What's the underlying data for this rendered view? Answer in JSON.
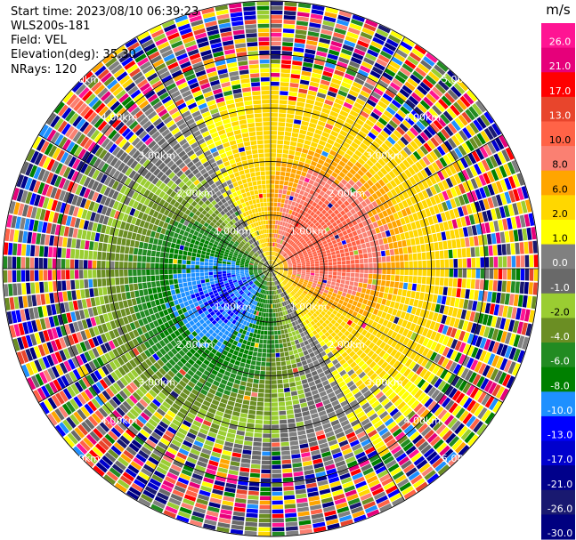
{
  "header": {
    "start_time": "Start time: 2023/08/10 06:39:23",
    "instrument": "WLS200s-181",
    "field": "Field: VEL",
    "elevation": "Elevation(deg): 35.30",
    "nrays": "NRays: 120"
  },
  "chart_data": {
    "type": "heatmap",
    "projection": "polar",
    "title": "",
    "field": "VEL",
    "nrays": 120,
    "elevation_deg": 35.3,
    "range_rings_km": [
      1,
      2,
      3,
      4,
      5
    ],
    "ring_labels": [
      "1.00km",
      "2.00km",
      "3.00km",
      "4.00km",
      "5.00km"
    ],
    "max_range_km": 5,
    "colorbar": {
      "unit": "m/s",
      "ticks": [
        "26.0",
        "21.0",
        "17.0",
        "13.0",
        "10.0",
        "8.0",
        "6.0",
        "2.0",
        "1.0",
        "0.0",
        "-1.0",
        "-2.0",
        "-4.0",
        "-6.0",
        "-8.0",
        "-10.0",
        "-13.0",
        "-17.0",
        "-21.0",
        "-26.0",
        "-30.0"
      ],
      "colors": [
        "#ff1493",
        "#e6007a",
        "#ff0000",
        "#e8452c",
        "#ff6347",
        "#fa8072",
        "#ffa500",
        "#ffd700",
        "#ffff00",
        "#808080",
        "#696969",
        "#9acd32",
        "#6b8e23",
        "#228b22",
        "#008000",
        "#1e90ff",
        "#0000ff",
        "#0000cd",
        "#00008b",
        "#191970",
        "#000080"
      ]
    },
    "velocity_pattern": {
      "approaching_azimuth_deg": 225,
      "receding_azimuth_deg": 60,
      "peak_positive_ms": 10,
      "peak_negative_ms": -10
    }
  }
}
